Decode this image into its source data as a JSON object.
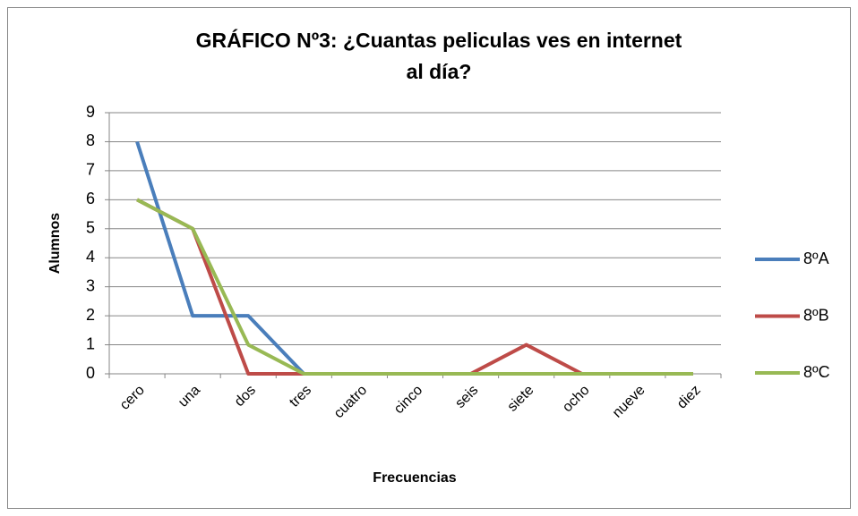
{
  "chart_data": {
    "type": "line",
    "title": [
      "GRÁFICO Nº3: ¿Cuantas peliculas ves en internet",
      "al día?"
    ],
    "x_label": "Frecuencias",
    "y_label": "Alumnos",
    "categories": [
      "cero",
      "una",
      "dos",
      "tres",
      "cuatro",
      "cinco",
      "seis",
      "siete",
      "ocho",
      "nueve",
      "diez"
    ],
    "series": [
      {
        "name": "8ºA",
        "color": "#4a7ebb",
        "values": [
          8,
          2,
          2,
          0,
          0,
          0,
          0,
          0,
          0,
          0,
          0
        ]
      },
      {
        "name": "8ºB",
        "color": "#be4b48",
        "values": [
          6,
          5,
          0,
          0,
          0,
          0,
          0,
          1,
          0,
          0,
          0
        ]
      },
      {
        "name": "8ºC",
        "color": "#98b954",
        "values": [
          6,
          5,
          1,
          0,
          0,
          0,
          0,
          0,
          0,
          0,
          0
        ]
      }
    ],
    "ylim": [
      0,
      9
    ],
    "yticks": [
      0,
      1,
      2,
      3,
      4,
      5,
      6,
      7,
      8,
      9
    ],
    "grid": true,
    "legend": "right"
  }
}
